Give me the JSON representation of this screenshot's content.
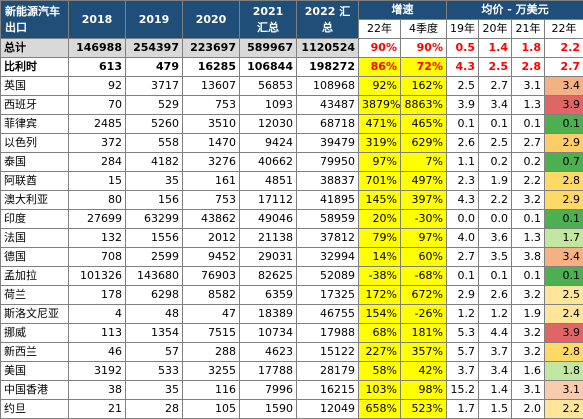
{
  "header": {
    "title_top": "新能源汽车",
    "title_bottom": "出口",
    "y2018": "2018",
    "y2019": "2019",
    "y2020": "2020",
    "y2021_top": "2021",
    "y2021_bottom": "汇总",
    "y2022_top": "2022 汇",
    "y2022_bottom": "总",
    "growth": "增速",
    "growth_22": "22年",
    "growth_q4": "4季度",
    "price": "均价 - 万美元",
    "p19": "19年",
    "p20": "20年",
    "p21": "21年",
    "p22": "22年"
  },
  "rows": [
    {
      "name": "总计",
      "y2018": "146988",
      "y2019": "254397",
      "y2020": "223697",
      "y2021": "589967",
      "y2022": "1120524",
      "g22": "90%",
      "gq4": "90%",
      "p19": "0.5",
      "p20": "1.4",
      "p21": "1.8",
      "p22": "2.2",
      "row_color": "#d9d9d9",
      "g22_color": "#ffffff",
      "gq4_color": "#ffffff",
      "price_bg": "#ffffff",
      "p22_bg": "#ffffff",
      "bold": true
    },
    {
      "name": "比利时",
      "y2018": "613",
      "y2019": "479",
      "y2020": "16285",
      "y2021": "106844",
      "y2022": "198272",
      "g22": "86%",
      "gq4": "72%",
      "p19": "4.3",
      "p20": "2.5",
      "p21": "2.8",
      "p22": "2.7",
      "row_color": "#ffffff",
      "g22_color": "#ffff00",
      "gq4_color": "#ffff00",
      "price_bg": "#ffffff",
      "p22_bg": "#ffffff",
      "bold": true,
      "red": true
    },
    {
      "name": "英国",
      "y2018": "92",
      "y2019": "3717",
      "y2020": "13607",
      "y2021": "56853",
      "y2022": "108968",
      "g22": "92%",
      "gq4": "162%",
      "p19": "2.5",
      "p20": "2.7",
      "p21": "3.1",
      "p22": "3.4",
      "row_color": "#ffffff",
      "g22_color": "#ffff00",
      "gq4_color": "#ffff00",
      "price_bg": "#ffffff",
      "p22_bg": "#f4b183"
    },
    {
      "name": "西班牙",
      "y2018": "70",
      "y2019": "529",
      "y2020": "753",
      "y2021": "1093",
      "y2022": "43487",
      "g22": "3879%",
      "gq4": "8863%",
      "p19": "3.9",
      "p20": "3.4",
      "p21": "1.3",
      "p22": "3.9",
      "row_color": "#ffffff",
      "g22_color": "#ffff00",
      "gq4_color": "#ffff00",
      "price_bg": "#ffffff",
      "p22_bg": "#e06666"
    },
    {
      "name": "菲律宾",
      "y2018": "2485",
      "y2019": "5260",
      "y2020": "3510",
      "y2021": "12030",
      "y2022": "68718",
      "g22": "471%",
      "gq4": "465%",
      "p19": "0.1",
      "p20": "0.1",
      "p21": "0.1",
      "p22": "0.1",
      "row_color": "#ffffff",
      "g22_color": "#ffff00",
      "gq4_color": "#ffff00",
      "price_bg": "#ffffff",
      "p22_bg": "#4caf50"
    },
    {
      "name": "以色列",
      "y2018": "372",
      "y2019": "558",
      "y2020": "1470",
      "y2021": "9424",
      "y2022": "39479",
      "g22": "319%",
      "gq4": "629%",
      "p19": "2.6",
      "p20": "2.5",
      "p21": "2.7",
      "p22": "2.9",
      "row_color": "#ffffff",
      "g22_color": "#ffff00",
      "gq4_color": "#ffff00",
      "price_bg": "#ffffff",
      "p22_bg": "#ffcc66"
    },
    {
      "name": "泰国",
      "y2018": "284",
      "y2019": "4182",
      "y2020": "3276",
      "y2021": "40662",
      "y2022": "79950",
      "g22": "97%",
      "gq4": "7%",
      "p19": "1.1",
      "p20": "0.2",
      "p21": "0.2",
      "p22": "0.7",
      "row_color": "#ffffff",
      "g22_color": "#ffff00",
      "gq4_color": "#ffff00",
      "price_bg": "#ffffff",
      "p22_bg": "#4caf50"
    },
    {
      "name": "阿联酋",
      "y2018": "15",
      "y2019": "35",
      "y2020": "161",
      "y2021": "4851",
      "y2022": "38837",
      "g22": "701%",
      "gq4": "497%",
      "p19": "2.3",
      "p20": "1.9",
      "p21": "2.2",
      "p22": "2.8",
      "row_color": "#ffffff",
      "g22_color": "#ffff00",
      "gq4_color": "#ffff00",
      "price_bg": "#ffffff",
      "p22_bg": "#ffd966"
    },
    {
      "name": "澳大利亚",
      "y2018": "80",
      "y2019": "156",
      "y2020": "753",
      "y2021": "17112",
      "y2022": "41895",
      "g22": "145%",
      "gq4": "397%",
      "p19": "4.3",
      "p20": "2.2",
      "p21": "3.2",
      "p22": "2.9",
      "row_color": "#ffffff",
      "g22_color": "#ffff00",
      "gq4_color": "#ffff00",
      "price_bg": "#ffffff",
      "p22_bg": "#ffd966"
    },
    {
      "name": "印度",
      "y2018": "27699",
      "y2019": "63299",
      "y2020": "43862",
      "y2021": "49046",
      "y2022": "58959",
      "g22": "20%",
      "gq4": "-30%",
      "p19": "0.0",
      "p20": "0.0",
      "p21": "0.1",
      "p22": "0.1",
      "row_color": "#ffffff",
      "g22_color": "#ffff00",
      "gq4_color": "#ffff00",
      "price_bg": "#ffffff",
      "p22_bg": "#4caf50"
    },
    {
      "name": "法国",
      "y2018": "132",
      "y2019": "1556",
      "y2020": "2012",
      "y2021": "21138",
      "y2022": "37812",
      "g22": "79%",
      "gq4": "97%",
      "p19": "4.0",
      "p20": "3.6",
      "p21": "1.3",
      "p22": "1.7",
      "row_color": "#ffffff",
      "g22_color": "#ffff00",
      "gq4_color": "#ffff00",
      "price_bg": "#ffffff",
      "p22_bg": "#c3e6a0"
    },
    {
      "name": "德国",
      "y2018": "708",
      "y2019": "2599",
      "y2020": "9452",
      "y2021": "29031",
      "y2022": "32994",
      "g22": "14%",
      "gq4": "60%",
      "p19": "2.7",
      "p20": "3.5",
      "p21": "3.8",
      "p22": "3.4",
      "row_color": "#ffffff",
      "g22_color": "#ffff00",
      "gq4_color": "#ffff00",
      "price_bg": "#ffffff",
      "p22_bg": "#f4b183"
    },
    {
      "name": "孟加拉",
      "y2018": "101326",
      "y2019": "143680",
      "y2020": "76903",
      "y2021": "82625",
      "y2022": "52089",
      "g22": "-38%",
      "gq4": "-68%",
      "p19": "0.1",
      "p20": "0.1",
      "p21": "0.1",
      "p22": "0.1",
      "row_color": "#ffffff",
      "g22_color": "#ffff00",
      "gq4_color": "#ffff00",
      "price_bg": "#ffffff",
      "p22_bg": "#4caf50"
    },
    {
      "name": "荷兰",
      "y2018": "178",
      "y2019": "6298",
      "y2020": "8582",
      "y2021": "6359",
      "y2022": "17325",
      "g22": "172%",
      "gq4": "672%",
      "p19": "2.9",
      "p20": "2.6",
      "p21": "3.2",
      "p22": "2.5",
      "row_color": "#ffffff",
      "g22_color": "#ffff00",
      "gq4_color": "#ffff00",
      "price_bg": "#ffffff",
      "p22_bg": "#ffe599"
    },
    {
      "name": "斯洛文尼亚",
      "y2018": "4",
      "y2019": "48",
      "y2020": "47",
      "y2021": "18389",
      "y2022": "46755",
      "g22": "154%",
      "gq4": "-26%",
      "p19": "1.2",
      "p20": "1.2",
      "p21": "1.9",
      "p22": "2.4",
      "row_color": "#ffffff",
      "g22_color": "#ffff00",
      "gq4_color": "#ffff00",
      "price_bg": "#ffffff",
      "p22_bg": "#ffe599"
    },
    {
      "name": "挪威",
      "y2018": "113",
      "y2019": "1354",
      "y2020": "7515",
      "y2021": "10734",
      "y2022": "17988",
      "g22": "68%",
      "gq4": "181%",
      "p19": "5.3",
      "p20": "4.4",
      "p21": "3.2",
      "p22": "3.9",
      "row_color": "#ffffff",
      "g22_color": "#ffff00",
      "gq4_color": "#ffff00",
      "price_bg": "#ffffff",
      "p22_bg": "#e06666"
    },
    {
      "name": "新西兰",
      "y2018": "46",
      "y2019": "57",
      "y2020": "288",
      "y2021": "4623",
      "y2022": "15122",
      "g22": "227%",
      "gq4": "357%",
      "p19": "5.7",
      "p20": "3.7",
      "p21": "3.2",
      "p22": "2.8",
      "row_color": "#ffffff",
      "g22_color": "#ffff00",
      "gq4_color": "#ffff00",
      "price_bg": "#ffffff",
      "p22_bg": "#ffd966"
    },
    {
      "name": "美国",
      "y2018": "3192",
      "y2019": "533",
      "y2020": "3255",
      "y2021": "17788",
      "y2022": "28179",
      "g22": "58%",
      "gq4": "42%",
      "p19": "3.7",
      "p20": "3.4",
      "p21": "1.6",
      "p22": "1.8",
      "row_color": "#ffffff",
      "g22_color": "#ffff00",
      "gq4_color": "#ffff00",
      "price_bg": "#ffffff",
      "p22_bg": "#c3e6a0"
    },
    {
      "name": "中国香港",
      "y2018": "38",
      "y2019": "35",
      "y2020": "116",
      "y2021": "7996",
      "y2022": "16215",
      "g22": "103%",
      "gq4": "98%",
      "p19": "15.2",
      "p20": "1.4",
      "p21": "3.1",
      "p22": "3.1",
      "row_color": "#ffffff",
      "g22_color": "#ffff00",
      "gq4_color": "#ffff00",
      "price_bg": "#ffffff",
      "p22_bg": "#f8cbad"
    },
    {
      "name": "约旦",
      "y2018": "21",
      "y2019": "28",
      "y2020": "105",
      "y2021": "1590",
      "y2022": "12049",
      "g22": "658%",
      "gq4": "523%",
      "p19": "1.7",
      "p20": "1.5",
      "p21": "2.0",
      "p22": "2.2",
      "row_color": "#ffffff",
      "g22_color": "#ffff00",
      "gq4_color": "#ffff00",
      "price_bg": "#ffffff",
      "p22_bg": "#ffe599"
    }
  ]
}
